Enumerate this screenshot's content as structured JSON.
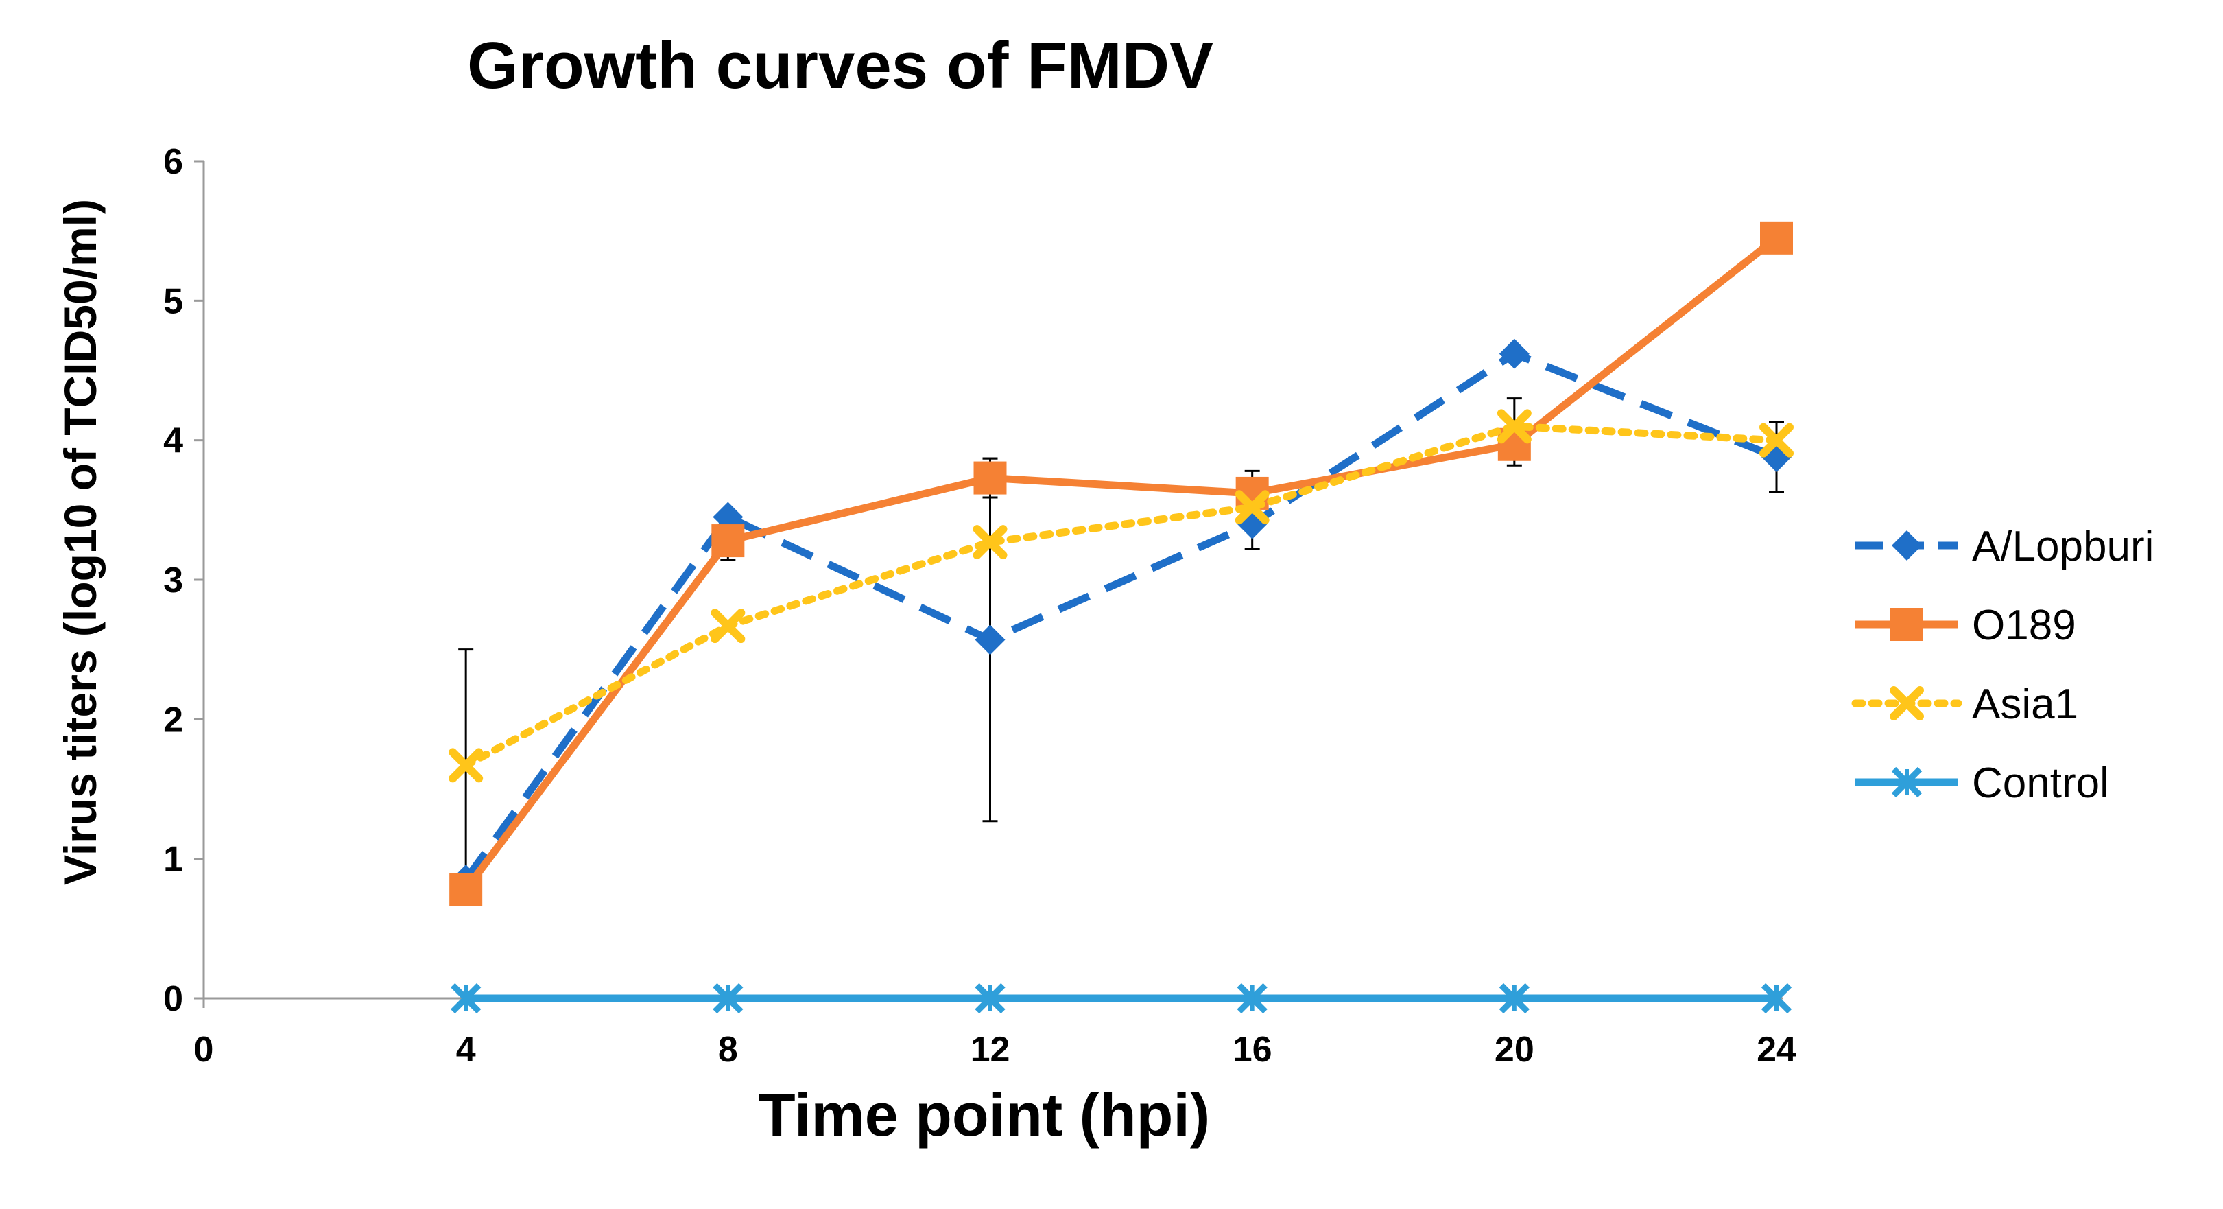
{
  "chart_data": {
    "type": "line",
    "title": "Growth curves of FMDV",
    "xlabel": "Time point (hpi)",
    "ylabel": "Virus titers (log10 of TCID50/ml)",
    "xlim": [
      0,
      24
    ],
    "ylim": [
      0,
      6
    ],
    "x_ticks": [
      0,
      4,
      8,
      12,
      16,
      20,
      24
    ],
    "y_ticks": [
      0,
      1,
      2,
      3,
      4,
      5,
      6
    ],
    "grid": false,
    "legend_position": "right",
    "x": [
      4,
      8,
      12,
      16,
      20,
      24
    ],
    "series": [
      {
        "name": "A/Lopburi",
        "color": "#1F6FC8",
        "line_style": "dashed",
        "marker": "diamond",
        "values": [
          0.85,
          3.45,
          2.57,
          3.4,
          4.62,
          3.88
        ],
        "error": [
          null,
          null,
          1.3,
          0.18,
          null,
          0.25
        ]
      },
      {
        "name": "O189",
        "color": "#F58134",
        "line_style": "solid",
        "marker": "square",
        "values": [
          0.78,
          3.28,
          3.73,
          3.62,
          3.97,
          5.45
        ],
        "error": [
          null,
          0.14,
          0.14,
          0.16,
          0.15,
          null
        ]
      },
      {
        "name": "Asia1",
        "color": "#FFC51A",
        "line_style": "dotted",
        "marker": "x",
        "values": [
          1.67,
          2.67,
          3.27,
          3.52,
          4.1,
          4.0
        ],
        "error": [
          0.83,
          null,
          null,
          null,
          0.2,
          null
        ]
      },
      {
        "name": "Control",
        "color": "#2F9FDA",
        "line_style": "solid",
        "marker": "star-x",
        "values": [
          0,
          0,
          0,
          0,
          0,
          0
        ],
        "error": [
          null,
          null,
          null,
          null,
          null,
          null
        ]
      }
    ]
  }
}
